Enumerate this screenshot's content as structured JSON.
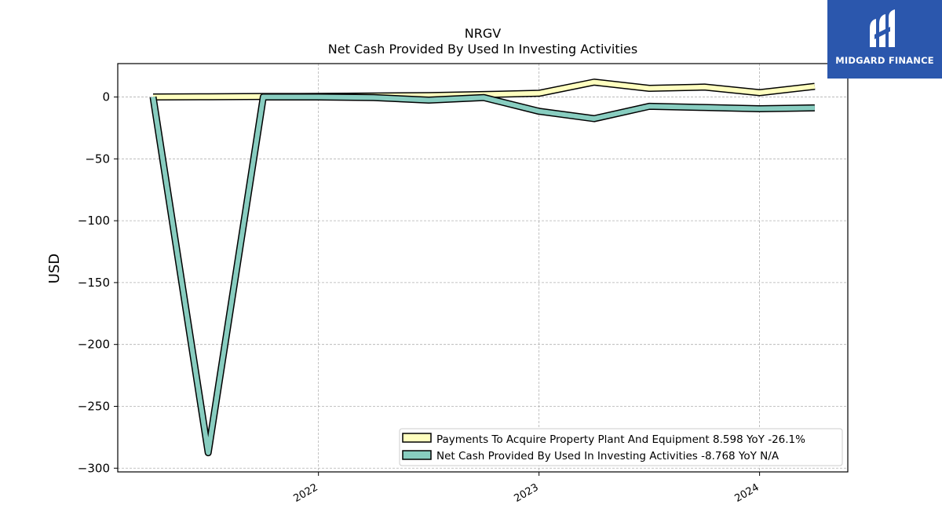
{
  "chart_data": {
    "type": "line",
    "title": "NRGV",
    "subtitle": "Net Cash Provided By Used In Investing Activities",
    "ylabel": "USD",
    "xlabel": "",
    "ylim": [
      -303,
      27
    ],
    "xlim": [
      2021.09,
      2024.4
    ],
    "yticks": [
      0,
      -50,
      -100,
      -150,
      -200,
      -250,
      -300
    ],
    "ytick_labels": [
      "0",
      "−50",
      "−100",
      "−150",
      "−200",
      "−250",
      "−300"
    ],
    "xticks": [
      2022,
      2023,
      2024
    ],
    "xtick_labels": [
      "2022",
      "2023",
      "2024"
    ],
    "grid": true,
    "legend_position": "lower-right",
    "x": [
      2021.25,
      2021.5,
      2021.75,
      2022.0,
      2022.25,
      2022.5,
      2022.75,
      2023.0,
      2023.25,
      2023.5,
      2023.75,
      2024.0,
      2024.25
    ],
    "series": [
      {
        "name": "Payments To Acquire Property Plant And Equipment  8.598 YoY -26.1%",
        "color": "#ffffbf",
        "values": [
          0,
          0.2,
          0.4,
          0.5,
          0.8,
          1.2,
          2.0,
          3.0,
          12.0,
          7.0,
          8.0,
          3.5,
          8.6
        ]
      },
      {
        "name": "Net Cash Provided By Used In Investing Activities  -8.768 YoY N/A",
        "color": "#88cdc0",
        "values": [
          0,
          -287.5,
          0,
          0,
          -0.5,
          -2.5,
          -0.5,
          -11.5,
          -17.5,
          -7.5,
          -8.5,
          -9.5,
          -8.8
        ]
      }
    ]
  },
  "logo": {
    "brand_text": "MIDGARD FINANCE",
    "background_color": "#2b57ad"
  }
}
